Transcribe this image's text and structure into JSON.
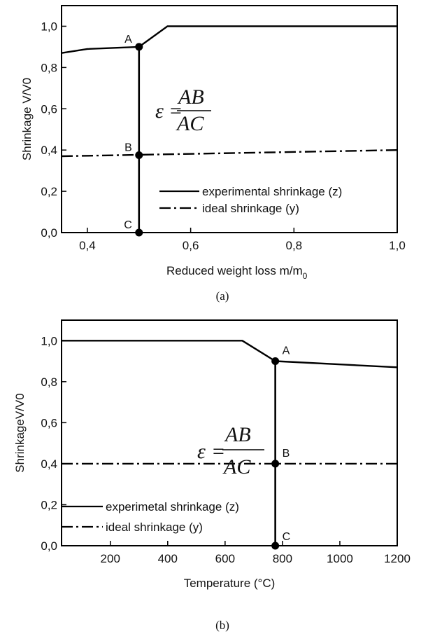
{
  "chart_data": [
    {
      "type": "line",
      "caption": "(a)",
      "xlabel": "Reduced weight loss m/m",
      "xlabel_sub": "0",
      "ylabel": "Shrinkage V/V0",
      "xlim": [
        0.35,
        1.0
      ],
      "ylim": [
        0.0,
        1.1
      ],
      "xticks": [
        0.4,
        0.6,
        0.8,
        1.0
      ],
      "xtick_labels": [
        "0,4",
        "0,6",
        "0,8",
        "1,0"
      ],
      "yticks": [
        0.0,
        0.2,
        0.4,
        0.6,
        0.8,
        1.0
      ],
      "ytick_labels": [
        "0,0",
        "0,2",
        "0,4",
        "0,6",
        "0,8",
        "1,0"
      ],
      "series": [
        {
          "name": "experimental shrinkage (z)",
          "style": "solid",
          "x": [
            0.35,
            0.4,
            0.5,
            0.555,
            1.0
          ],
          "y": [
            0.87,
            0.89,
            0.9,
            1.0,
            1.0
          ]
        },
        {
          "name": "ideal shrinkage (y)",
          "style": "dashdot",
          "x": [
            0.35,
            1.0
          ],
          "y": [
            0.37,
            0.4
          ]
        }
      ],
      "vline_x": 0.5,
      "points": [
        {
          "label": "A",
          "x": 0.5,
          "y": 0.9
        },
        {
          "label": "B",
          "x": 0.5,
          "y": 0.375
        },
        {
          "label": "C",
          "x": 0.5,
          "y": 0.0
        }
      ],
      "equation": {
        "lhs": "ε",
        "op": "=",
        "num": "AB",
        "den": "AC"
      },
      "legend_position": "bottom-right"
    },
    {
      "type": "line",
      "caption": "(b)",
      "xlabel": "Temperature (°C)",
      "ylabel": "ShrinkageV/V0",
      "xlim": [
        30,
        1200
      ],
      "ylim": [
        0.0,
        1.1
      ],
      "xticks": [
        200,
        400,
        600,
        800,
        1000,
        1200
      ],
      "xtick_labels": [
        "200",
        "400",
        "600",
        "800",
        "1000",
        "1200"
      ],
      "yticks": [
        0.0,
        0.2,
        0.4,
        0.6,
        0.8,
        1.0
      ],
      "ytick_labels": [
        "0,0",
        "0,2",
        "0,4",
        "0,6",
        "0,8",
        "1,0"
      ],
      "series": [
        {
          "name": "experimetal shrinkage (z)",
          "style": "solid",
          "x": [
            30,
            660,
            775,
            1200
          ],
          "y": [
            1.0,
            1.0,
            0.9,
            0.87
          ]
        },
        {
          "name": "ideal shrinkage (y)",
          "style": "dashdot",
          "x": [
            30,
            1200
          ],
          "y": [
            0.4,
            0.4
          ]
        }
      ],
      "vline_x": 775,
      "points": [
        {
          "label": "A",
          "x": 775,
          "y": 0.9
        },
        {
          "label": "B",
          "x": 775,
          "y": 0.4
        },
        {
          "label": "C",
          "x": 775,
          "y": 0.0
        }
      ],
      "equation": {
        "lhs": "ε",
        "op": "=",
        "num": "AB",
        "den": "AC"
      },
      "legend_position": "bottom-left"
    }
  ]
}
